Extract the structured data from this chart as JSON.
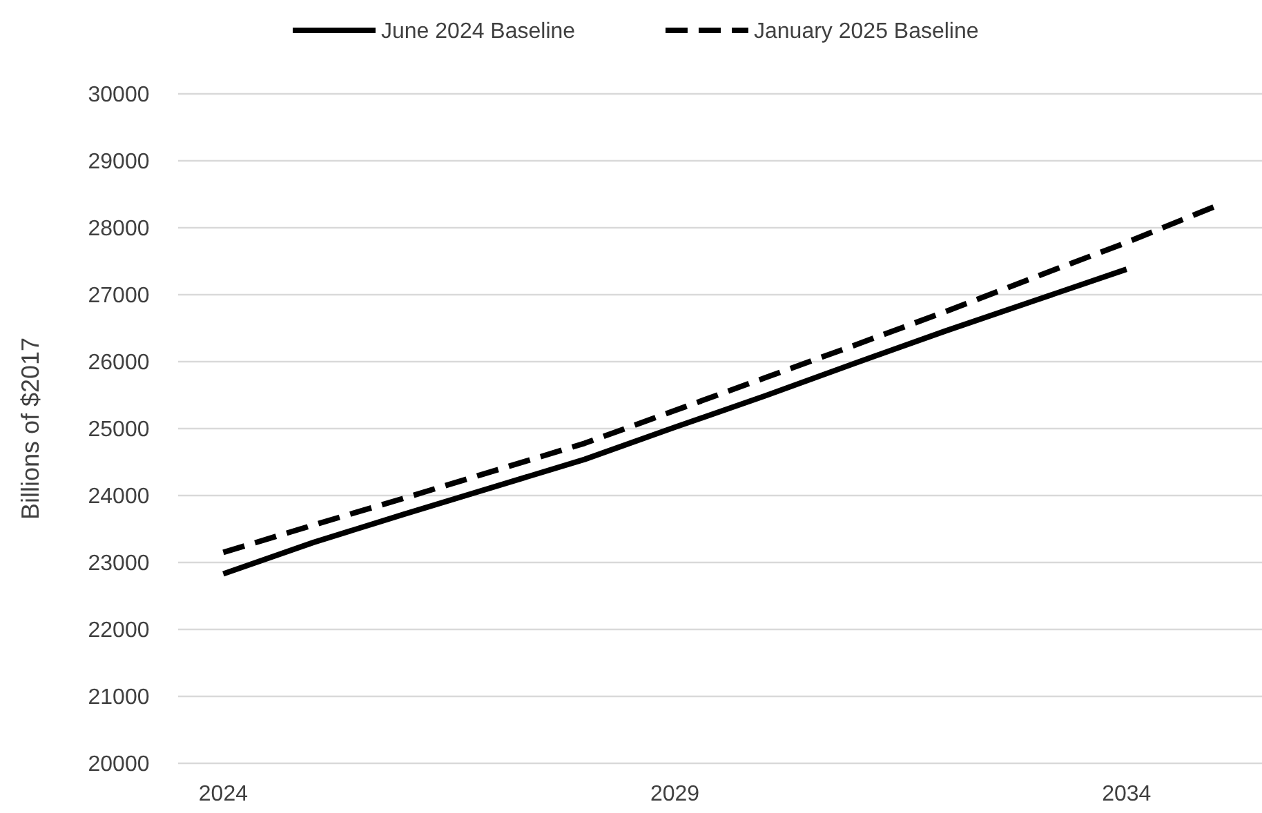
{
  "chart_data": {
    "type": "line",
    "ylabel": "Billions of $2017",
    "xlim": [
      2023.5,
      2035.5
    ],
    "xticks": [
      2024,
      2029,
      2034
    ],
    "ylim": [
      20000,
      30000
    ],
    "yticks": [
      20000,
      21000,
      22000,
      23000,
      24000,
      25000,
      26000,
      27000,
      28000,
      29000,
      30000
    ],
    "grid": "y",
    "legend": "top",
    "series": [
      {
        "name": "June 2024 Baseline",
        "color": "#000000",
        "line_style": "solid",
        "x": [
          2024,
          2025,
          2026,
          2027,
          2028,
          2029,
          2030,
          2031,
          2032,
          2033,
          2034
        ],
        "values": [
          22830,
          23300,
          23720,
          24130,
          24540,
          25020,
          25490,
          25980,
          26460,
          26920,
          27380
        ]
      },
      {
        "name": "January 2025 Baseline",
        "color": "#000000",
        "line_style": "dashed",
        "x": [
          2024,
          2025,
          2026,
          2027,
          2028,
          2029,
          2030,
          2031,
          2032,
          2033,
          2034,
          2035
        ],
        "values": [
          23150,
          23560,
          23960,
          24370,
          24780,
          25270,
          25760,
          26250,
          26750,
          27270,
          27780,
          28330
        ]
      }
    ]
  }
}
